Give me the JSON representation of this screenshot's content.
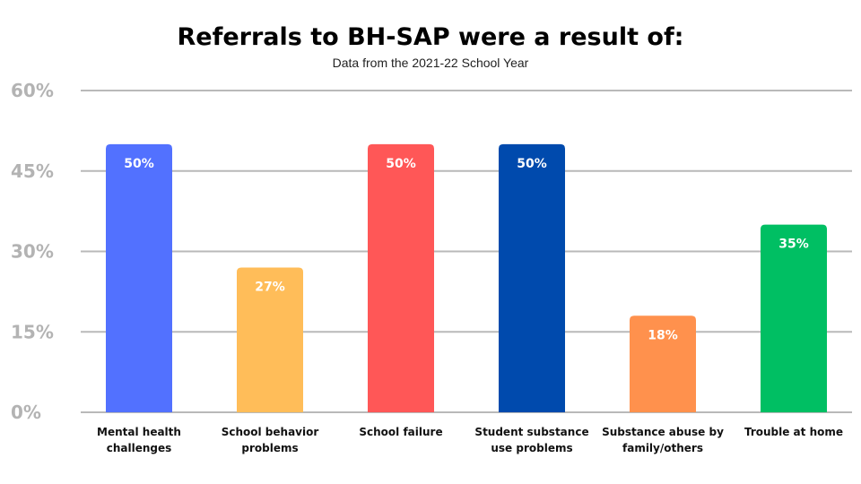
{
  "chart_data": {
    "type": "bar",
    "title": "Referrals to BH-SAP were a result of:",
    "subtitle": "Data from the 2021-22 School Year",
    "xlabel": "",
    "ylabel": "",
    "ylim": [
      0,
      60
    ],
    "yticks": [
      0,
      15,
      30,
      45,
      60
    ],
    "ytick_labels": [
      "0%",
      "15%",
      "30%",
      "45%",
      "60%"
    ],
    "grid": true,
    "categories": [
      [
        "Mental health",
        "challenges"
      ],
      [
        "School behavior",
        "problems"
      ],
      [
        "School failure"
      ],
      [
        "Student substance",
        "use problems"
      ],
      [
        "Substance abuse by",
        "family/others"
      ],
      [
        "Trouble at home"
      ]
    ],
    "values": [
      50,
      27,
      50,
      50,
      18,
      35
    ],
    "data_labels": [
      "50%",
      "27%",
      "50%",
      "50%",
      "18%",
      "35%"
    ],
    "colors": [
      "#5271ff",
      "#ffbd59",
      "#ff5757",
      "#004aad",
      "#ff914d",
      "#00bf63"
    ]
  }
}
